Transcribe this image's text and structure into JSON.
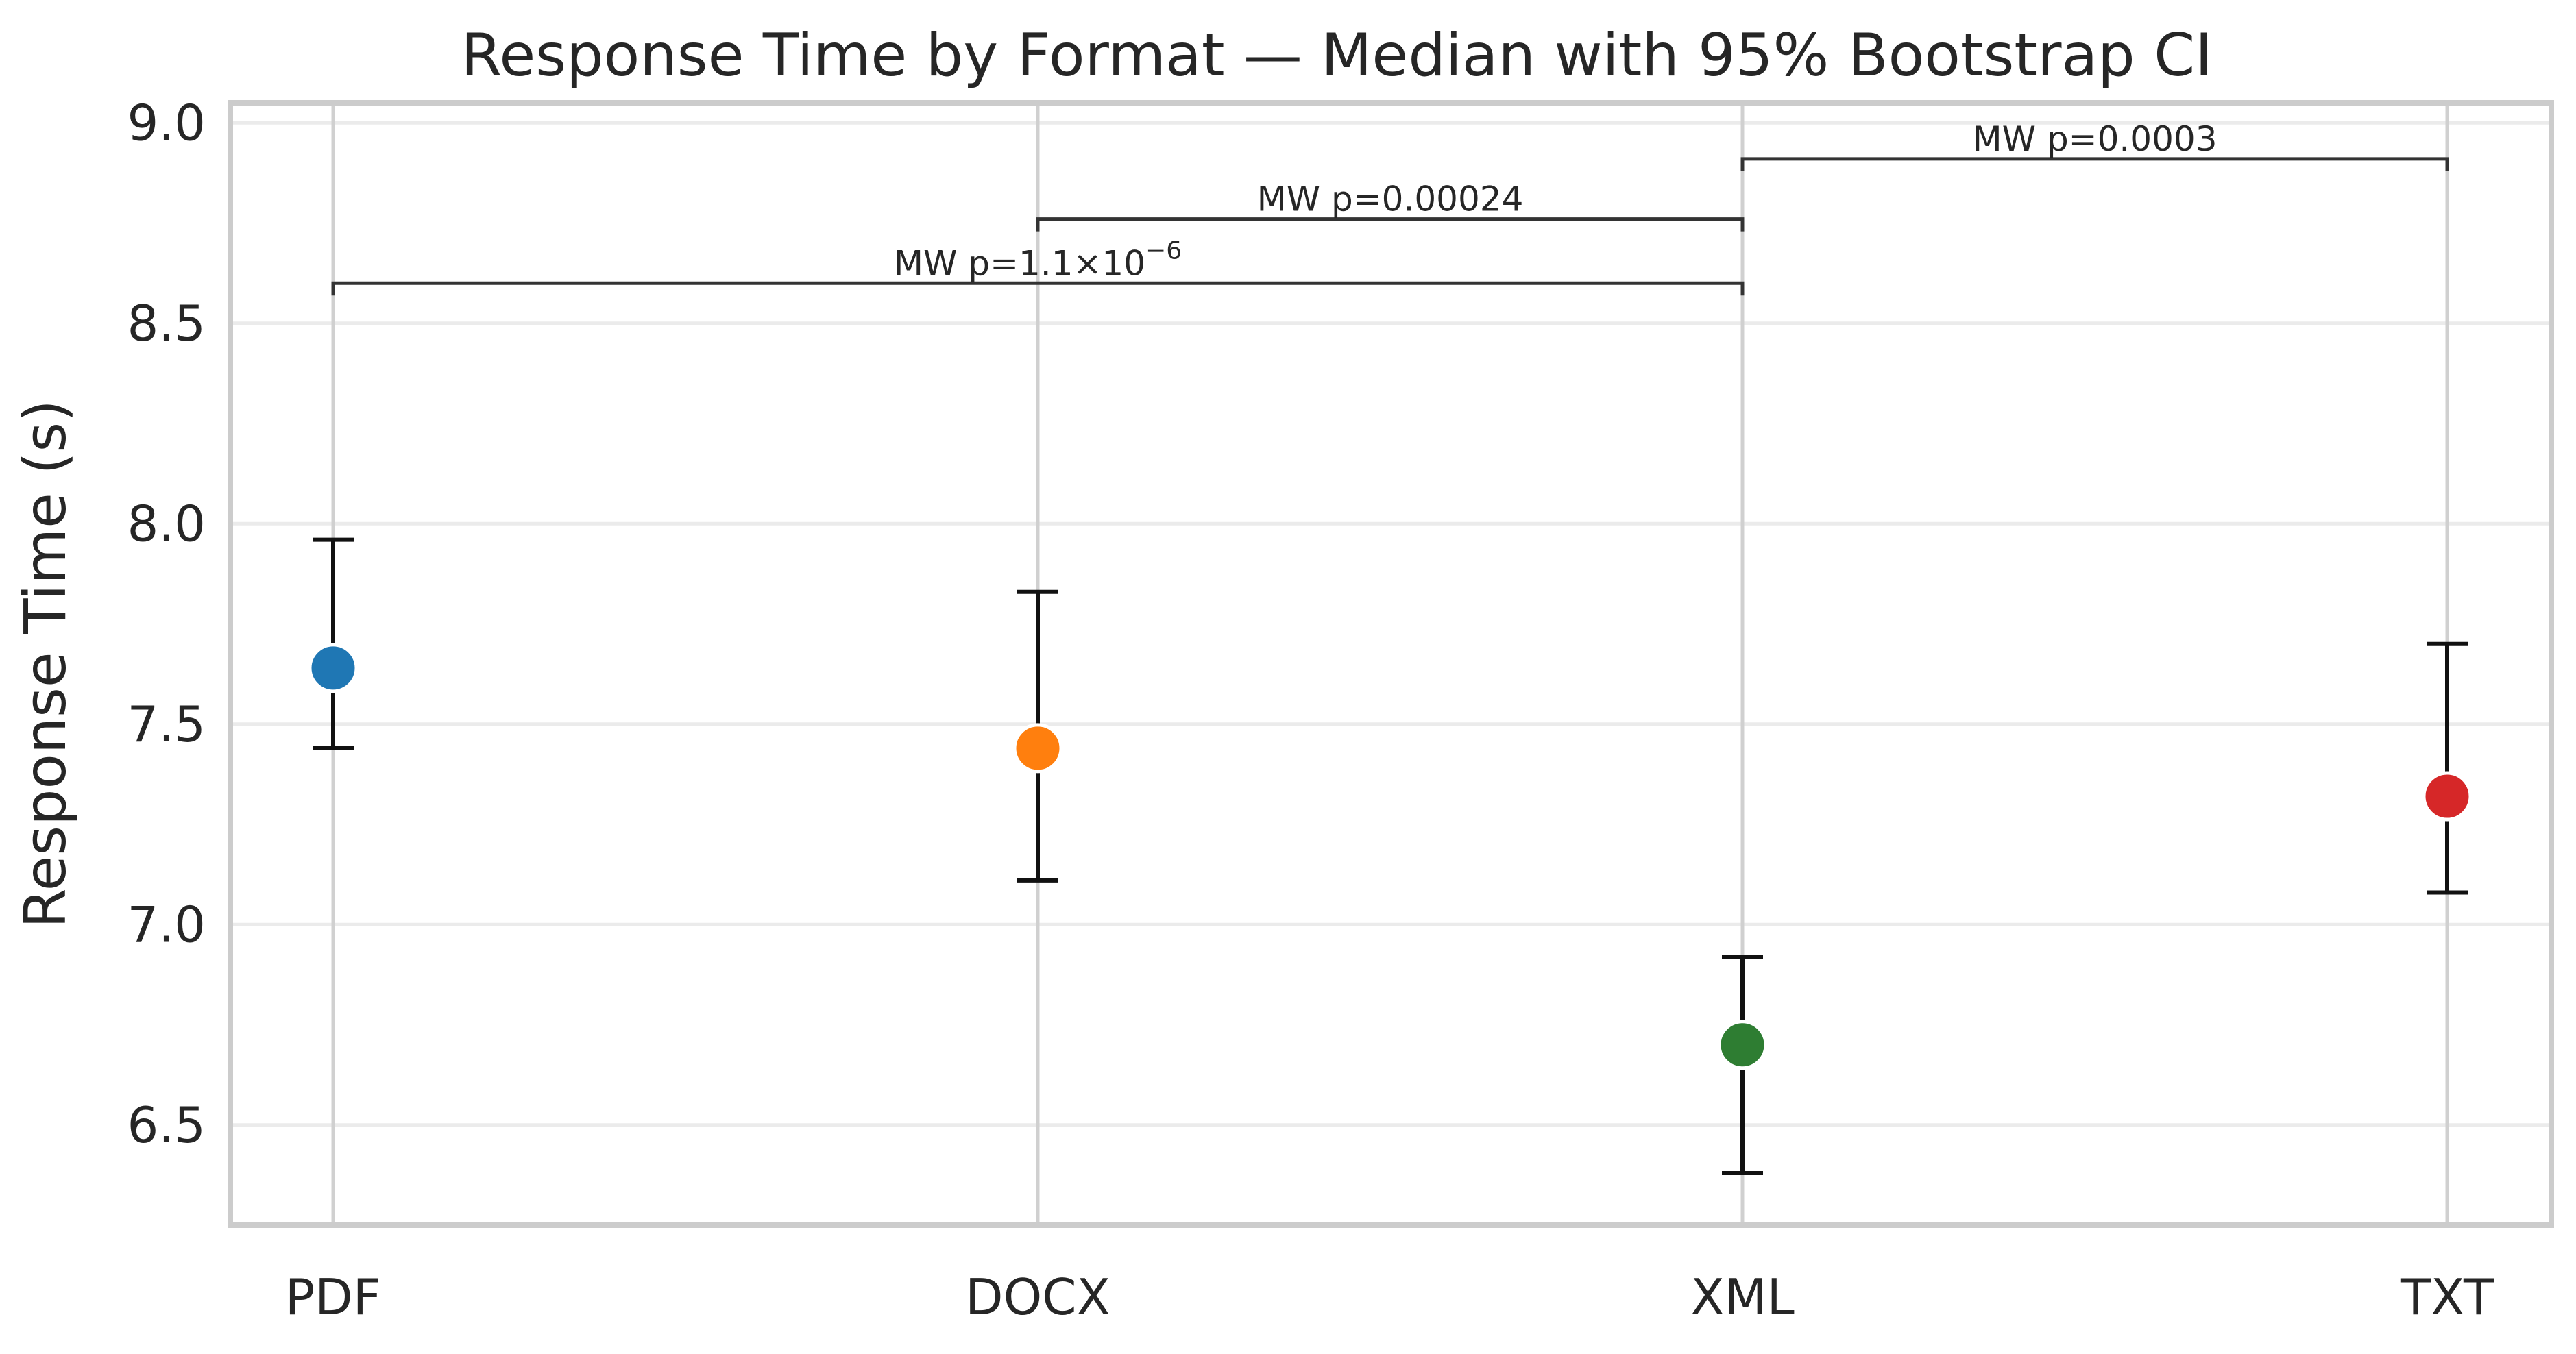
{
  "chart_data": {
    "type": "scatter",
    "title": "Response Time by Format — Median with 95% Bootstrap CI",
    "xlabel": "",
    "ylabel": "Response Time (s)",
    "ylim": [
      6.25,
      9.05
    ],
    "yticks": [
      6.5,
      7.0,
      7.5,
      8.0,
      8.5,
      9.0
    ],
    "ytick_labels": [
      "6.5",
      "7.0",
      "7.5",
      "8.0",
      "8.5",
      "9.0"
    ],
    "grid": true,
    "categories": [
      "PDF",
      "DOCX",
      "XML",
      "TXT"
    ],
    "points": [
      {
        "category": "PDF",
        "median": 7.64,
        "ci_low": 7.44,
        "ci_high": 7.96,
        "color": "#1f77b4"
      },
      {
        "category": "DOCX",
        "median": 7.44,
        "ci_low": 7.11,
        "ci_high": 7.83,
        "color": "#ff7f0e"
      },
      {
        "category": "XML",
        "median": 6.7,
        "ci_low": 6.38,
        "ci_high": 6.92,
        "color": "#2e7d32"
      },
      {
        "category": "TXT",
        "median": 7.32,
        "ci_low": 7.08,
        "ci_high": 7.7,
        "color": "#d62728"
      }
    ],
    "annotations": [
      {
        "from": "PDF",
        "to": "XML",
        "y": 8.6,
        "label": "MW p=1.1×10",
        "exponent": "−6"
      },
      {
        "from": "DOCX",
        "to": "XML",
        "y": 8.76,
        "label": "MW p=0.00024",
        "exponent": ""
      },
      {
        "from": "XML",
        "to": "TXT",
        "y": 8.91,
        "label": "MW p=0.0003",
        "exponent": ""
      }
    ]
  }
}
